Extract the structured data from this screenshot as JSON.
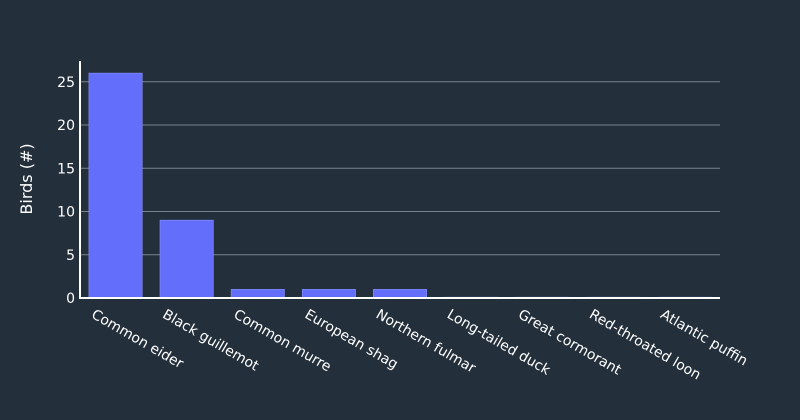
{
  "chart_data": {
    "type": "bar",
    "title": "",
    "xlabel": "",
    "ylabel": "Birds (#)",
    "ylim": [
      0,
      27.4
    ],
    "yticks": [
      0,
      5,
      10,
      15,
      20,
      25
    ],
    "grid": true,
    "categories": [
      "Common eider",
      "Black guillemot",
      "Common murre",
      "European shag",
      "Northern fulmar",
      "Long-tailed duck",
      "Great cormorant",
      "Red-throated loon",
      "Atlantic puffin"
    ],
    "values": [
      26,
      9,
      1,
      1,
      1,
      0,
      0,
      0,
      0
    ]
  },
  "colors": {
    "background": "#232f3b",
    "bar": "#636efa",
    "grid": "#7a838c",
    "axis": "#ffffff",
    "text": "#ffffff"
  }
}
